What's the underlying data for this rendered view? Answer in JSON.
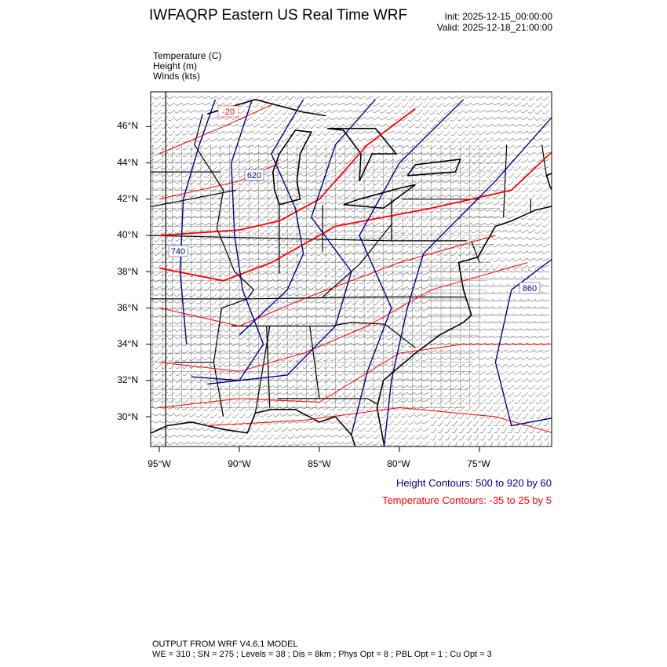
{
  "header": {
    "title": "IWFAQRP Eastern US Real Time WRF",
    "init": "Init: 2025-12-15_00:00:00",
    "valid": "Valid: 2025-12-18_21:00:00"
  },
  "fields": [
    "Temperature   (C)",
    "Height   (m)",
    "Winds   (kts)"
  ],
  "map": {
    "lat_labels": [
      "46°N",
      "44°N",
      "42°N",
      "40°N",
      "38°N",
      "36°N",
      "34°N",
      "32°N",
      "30°N"
    ],
    "lon_labels": [
      "95°W",
      "90°W",
      "85°W",
      "80°W",
      "75°W"
    ],
    "height_contour_labels": [
      "620",
      "740",
      "860"
    ],
    "temperature_contour_labels": [
      "-20"
    ],
    "colors": {
      "height": "#00008b",
      "temperature": "#ff0000",
      "borders": "#000000"
    }
  },
  "legend": {
    "height": "Height Contours: 500 to 920 by 60",
    "temperature": "Temperature Contours: -35 to 25 by 5"
  },
  "footer": {
    "line1": "OUTPUT FROM WRF V4.6.1 MODEL",
    "line2": "WE = 310 ; SN = 275 ; Levels = 38 ; Dis = 8km ; Phys Opt = 8 ; PBL Opt = 1 ; Cu Opt = 3"
  }
}
